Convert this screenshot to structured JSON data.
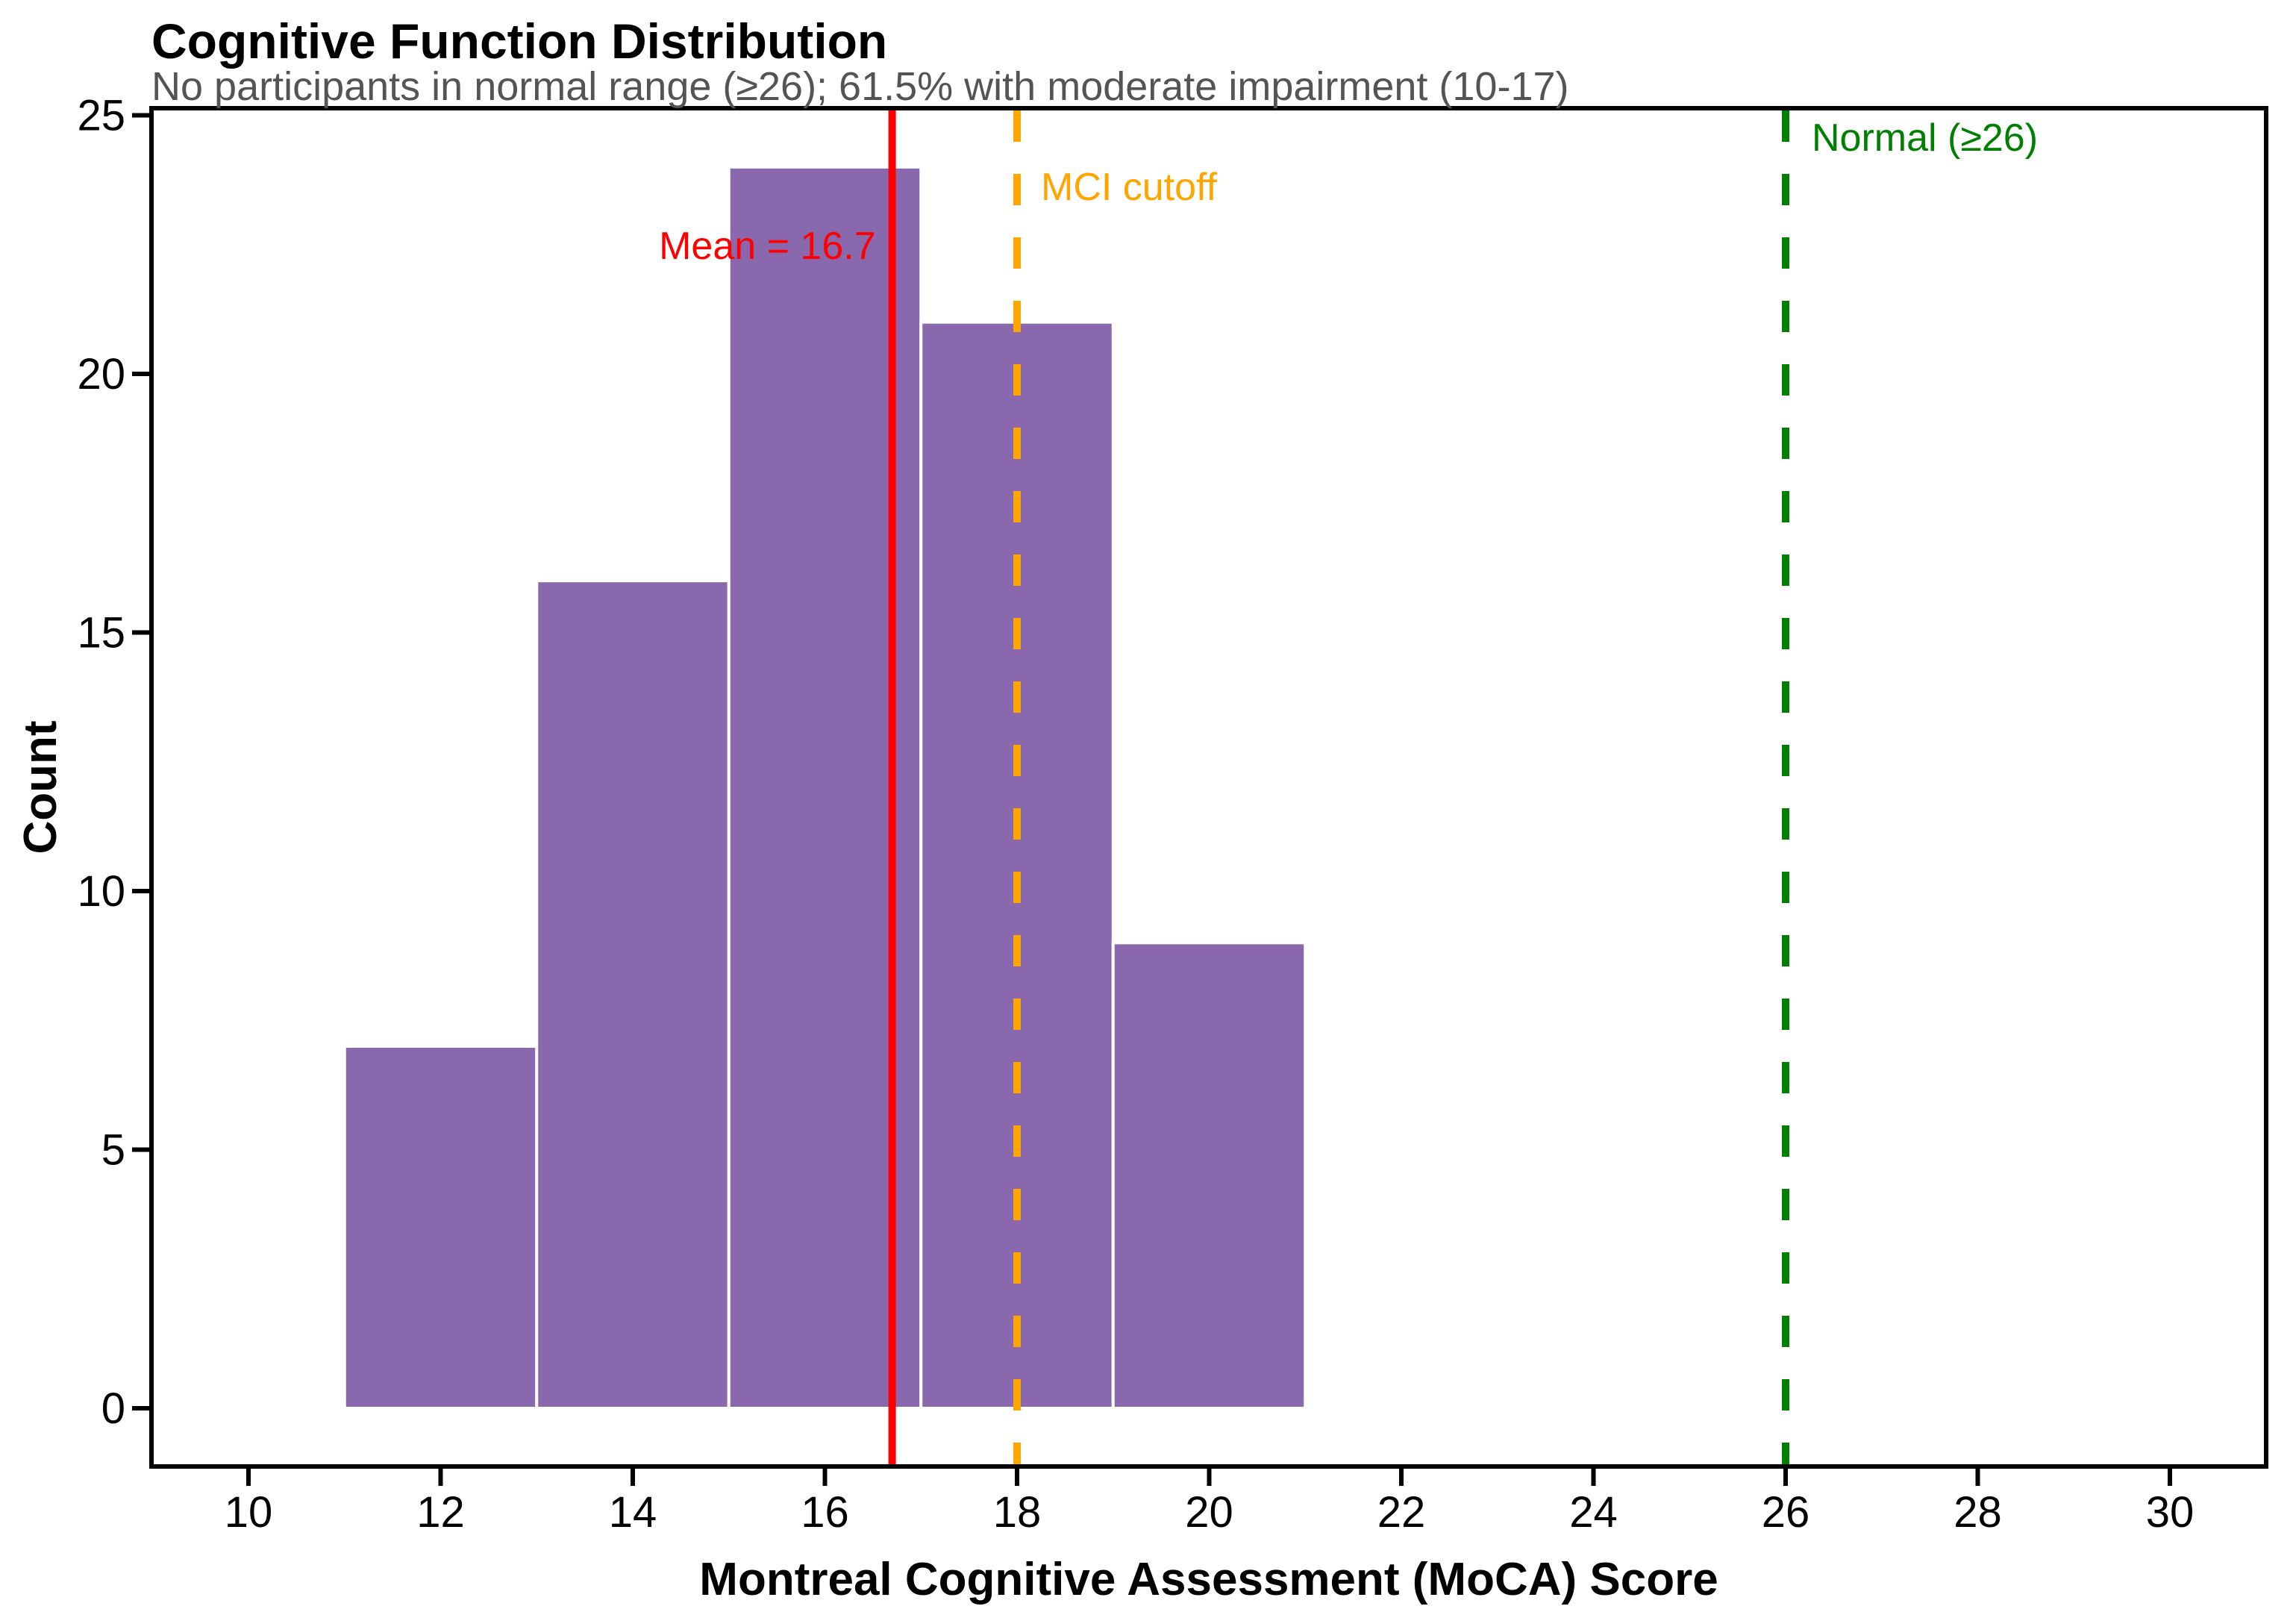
{
  "chart_data": {
    "type": "bar",
    "subtype": "histogram",
    "title": "Cognitive Function Distribution",
    "subtitle": "No participants in normal range (≥26); 61.5% with moderate impairment (10-17)",
    "xlabel": "Montreal Cognitive Assessment (MoCA) Score",
    "ylabel": "Count",
    "bin_edges": [
      11,
      13,
      15,
      17,
      19,
      21
    ],
    "counts": [
      7,
      16,
      24,
      21,
      9
    ],
    "xticks": [
      10,
      12,
      14,
      16,
      18,
      20,
      22,
      24,
      26,
      28,
      30
    ],
    "yticks": [
      0,
      5,
      10,
      15,
      20,
      25
    ],
    "xlim": [
      9,
      31
    ],
    "ylim": [
      -1.125,
      25.14
    ],
    "grid": false,
    "legend_position": "none",
    "colors": {
      "bar_fill": "#8a68ad",
      "bar_edge": "#ffffff",
      "axis": "#000000",
      "title": "#000000",
      "subtitle": "#545454"
    },
    "vlines": [
      {
        "x": 16.7,
        "label": "Mean = 16.7",
        "color": "#ff0000",
        "style": "solid"
      },
      {
        "x": 18,
        "label": "MCI cutoff",
        "color": "#ffa500",
        "style": "dashed"
      },
      {
        "x": 26,
        "label": "Normal (≥26)",
        "color": "#008000",
        "style": "dashed"
      }
    ]
  }
}
